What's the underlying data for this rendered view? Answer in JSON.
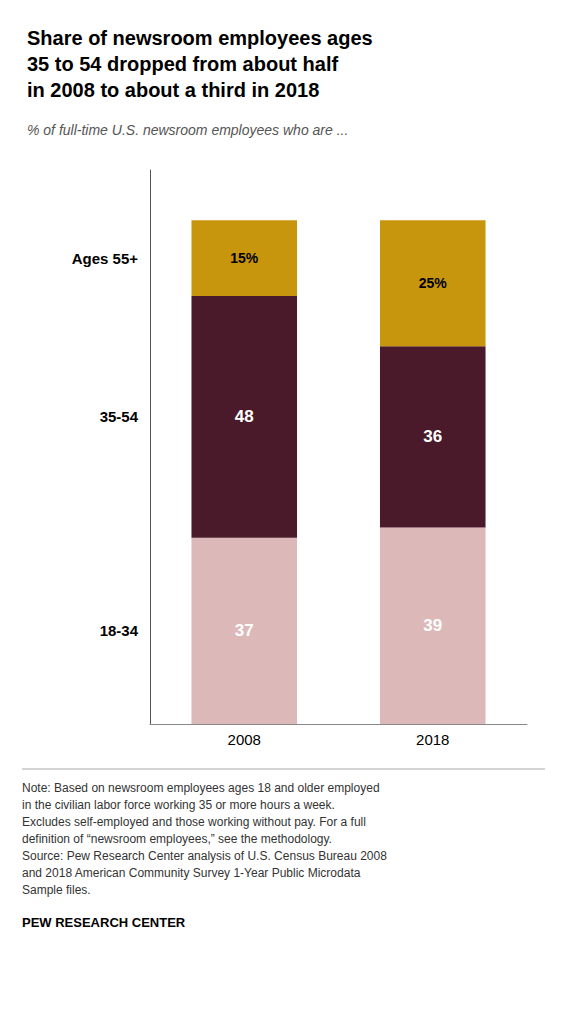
{
  "chart_data": {
    "type": "bar",
    "title": "Share of newsroom employees ages\n35 to 54 dropped from about half\nin 2008 to about a third in 2018",
    "subtitle": "% of full-time U.S. newsroom employees who are ...",
    "categories": [
      "2008",
      "2018"
    ],
    "series": [
      {
        "name": "18-34",
        "color": "#ddb8b8",
        "values": [
          37,
          39
        ]
      },
      {
        "name": "35-54",
        "color": "#4a1a2a",
        "values": [
          48,
          36
        ]
      },
      {
        "name": "Ages 55+",
        "color": "#c8960c",
        "values": [
          15,
          25
        ],
        "value_labels": [
          "15%",
          "25%"
        ]
      }
    ],
    "stacked": true,
    "data_labels": true,
    "ylim": [
      0,
      110
    ],
    "grid": false,
    "tick_labels": "x",
    "annotations": [
      "Note: Based on newsroom employees ages 18 and older employed\nin the civilian labor force working 35 or more hours a week.\nExcludes self-employed and those working without pay. For a full\ndefinition of “newsroom employees,” see the methodology.\nSource: Pew Research Center analysis of U.S. Census Bureau 2008\nand 2018 American Community Survey 1-Year Public Microdata\nSample files.",
      "PEW RESEARCH CENTER"
    ]
  }
}
